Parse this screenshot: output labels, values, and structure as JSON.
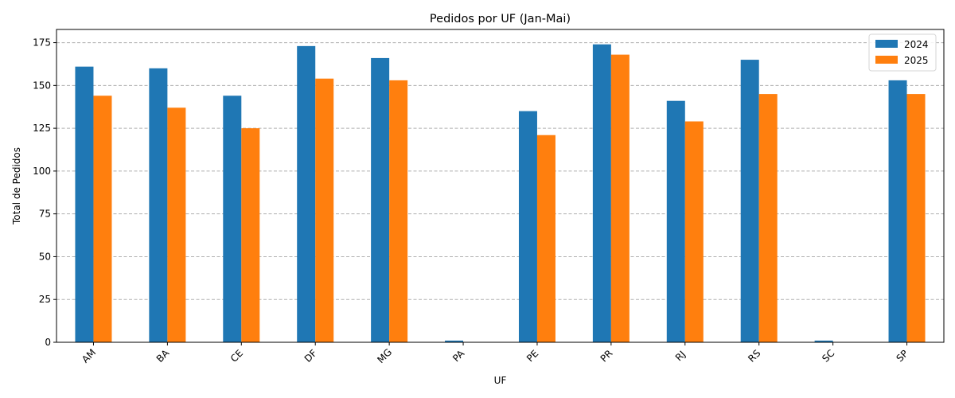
{
  "chart_data": {
    "type": "bar",
    "title": "Pedidos por UF (Jan-Mai)",
    "xlabel": "UF",
    "ylabel": "Total de Pedidos",
    "categories": [
      "AM",
      "BA",
      "CE",
      "DF",
      "MG",
      "PA",
      "PE",
      "PR",
      "RJ",
      "RS",
      "SC",
      "SP"
    ],
    "series": [
      {
        "name": "2024",
        "color": "#1f77b4",
        "values": [
          161,
          160,
          144,
          173,
          166,
          1,
          135,
          174,
          141,
          165,
          1,
          153
        ]
      },
      {
        "name": "2025",
        "color": "#ff7f0e",
        "values": [
          144,
          137,
          125,
          154,
          153,
          0,
          121,
          168,
          129,
          145,
          0,
          145
        ]
      }
    ],
    "ylim": [
      0,
      182.7
    ],
    "yticks": [
      0,
      25,
      50,
      75,
      100,
      125,
      150,
      175
    ],
    "grid": "y-dashed",
    "legend_position": "top-right"
  }
}
